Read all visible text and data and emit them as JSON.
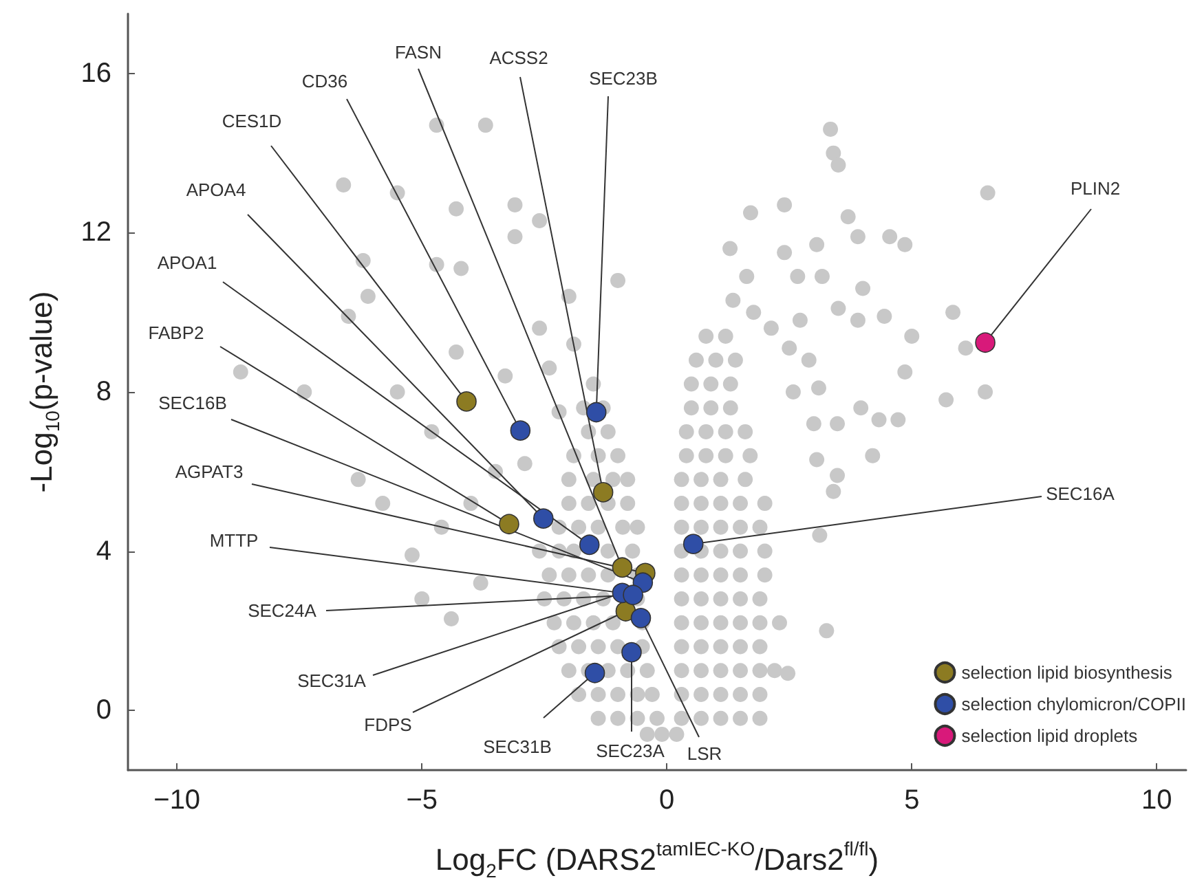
{
  "chart_data": {
    "type": "scatter",
    "xlabel": "Log$_{2}$FC (DARS2$^{tamIEC-KO}$/Dars2$^{fl/fl}$)",
    "ylabel": "-Log$_{10}$(p-value)",
    "xlim": [
      -11,
      10.6
    ],
    "ylim": [
      -1.5,
      17.5
    ],
    "xticks": [
      -10,
      -5,
      0,
      5,
      10
    ],
    "yticks": [
      0,
      4,
      8,
      12,
      16
    ],
    "grid": false,
    "legend": "bottom right",
    "marker": "circle",
    "series": [
      {
        "color": "#c8c8c8",
        "x": [
          -0.4,
          -0.1,
          0.2,
          -1.4,
          -1.0,
          -0.6,
          -0.2,
          0.3,
          0.7,
          1.1,
          1.5,
          1.9,
          -1.8,
          -1.4,
          -1.0,
          -0.6,
          -0.3,
          0.3,
          0.7,
          1.1,
          1.5,
          1.9,
          -2.0,
          -1.6,
          -1.2,
          -0.8,
          -0.4,
          0.3,
          0.7,
          1.1,
          1.5,
          1.9,
          2.2,
          -2.2,
          -1.8,
          -1.4,
          -1.0,
          -0.5,
          0.3,
          0.7,
          1.1,
          1.5,
          1.9,
          -2.3,
          -1.9,
          -1.5,
          -1.1,
          -0.5,
          0.3,
          0.7,
          1.1,
          1.5,
          1.9,
          2.3,
          -2.5,
          -2.1,
          -1.7,
          -1.3,
          -0.6,
          0.3,
          0.7,
          1.1,
          1.5,
          1.9,
          -2.4,
          -2.0,
          -1.6,
          -1.2,
          -0.6,
          0.3,
          0.7,
          1.1,
          1.5,
          2.0,
          -2.6,
          -2.2,
          -1.9,
          -1.2,
          -0.7,
          0.3,
          0.7,
          1.1,
          1.5,
          2.0,
          -2.2,
          -1.8,
          -1.4,
          -0.9,
          -0.6,
          0.3,
          0.7,
          1.1,
          1.5,
          1.9,
          -2.0,
          -1.6,
          -1.2,
          -0.8,
          0.3,
          0.7,
          1.1,
          1.5,
          2.0,
          -2.0,
          -1.5,
          -1.1,
          -0.8,
          0.3,
          0.7,
          1.1,
          1.6,
          -1.9,
          -1.4,
          -1.0,
          0.4,
          0.8,
          1.2,
          1.7,
          -1.6,
          -1.2,
          0.4,
          0.8,
          1.2,
          1.6,
          -1.7,
          -1.3,
          0.5,
          0.9,
          1.3,
          -1.5,
          0.5,
          0.9,
          1.3,
          0.6,
          1.0,
          1.4,
          0.8,
          1.2,
          -2.9,
          -3.5,
          -4.0,
          -4.6,
          -5.2,
          -3.8,
          -4.4,
          -5.0,
          -5.8,
          -6.3,
          -4.8,
          -5.5,
          -4.3,
          -3.3,
          -2.2,
          -1.9,
          -2.4,
          -2.6,
          -2.0,
          -4.7,
          -3.7,
          -6.6,
          -5.5,
          -4.3,
          -3.1,
          -2.6,
          -3.1,
          -1.0,
          -6.2,
          -6.1,
          -6.5,
          -8.7,
          -4.7,
          -4.2,
          -7.4,
          3.34,
          3.4,
          3.5,
          6.55,
          1.71,
          2.4,
          3.7,
          1.29,
          3.06,
          3.9,
          4.55,
          4.86,
          2.4,
          1.63,
          2.67,
          3.17,
          4.0,
          1.35,
          1.77,
          3.5,
          3.9,
          4.44,
          5.0,
          5.84,
          6.1,
          2.72,
          2.13,
          2.5,
          2.9,
          4.86,
          5.7,
          6.5,
          2.58,
          3.1,
          3.96,
          4.33,
          4.72,
          3.48,
          3.0,
          4.2,
          3.06,
          3.48,
          3.4,
          3.12,
          3.26,
          2.47
        ],
        "values": [
          -0.6,
          -0.6,
          -0.6,
          -0.2,
          -0.2,
          -0.2,
          -0.2,
          -0.2,
          -0.2,
          -0.2,
          -0.2,
          -0.2,
          0.4,
          0.4,
          0.4,
          0.4,
          0.4,
          0.4,
          0.4,
          0.4,
          0.4,
          0.4,
          1.0,
          1.0,
          1.0,
          1.0,
          1.0,
          1.0,
          1.0,
          1.0,
          1.0,
          1.0,
          1.0,
          1.6,
          1.6,
          1.6,
          1.6,
          1.6,
          1.6,
          1.6,
          1.6,
          1.6,
          1.6,
          2.2,
          2.2,
          2.2,
          2.2,
          2.2,
          2.2,
          2.2,
          2.2,
          2.2,
          2.2,
          2.2,
          2.8,
          2.8,
          2.8,
          2.8,
          2.8,
          2.8,
          2.8,
          2.8,
          2.8,
          2.8,
          3.4,
          3.4,
          3.4,
          3.4,
          3.4,
          3.4,
          3.4,
          3.4,
          3.4,
          3.4,
          4.0,
          4.0,
          4.0,
          4.0,
          4.0,
          4.0,
          4.0,
          4.0,
          4.0,
          4.0,
          4.6,
          4.6,
          4.6,
          4.6,
          4.6,
          4.6,
          4.6,
          4.6,
          4.6,
          4.6,
          5.2,
          5.2,
          5.2,
          5.2,
          5.2,
          5.2,
          5.2,
          5.2,
          5.2,
          5.8,
          5.8,
          5.8,
          5.8,
          5.8,
          5.8,
          5.8,
          5.8,
          6.4,
          6.4,
          6.4,
          6.4,
          6.4,
          6.4,
          6.4,
          7.0,
          7.0,
          7.0,
          7.0,
          7.0,
          7.0,
          7.6,
          7.6,
          7.6,
          7.6,
          7.6,
          8.2,
          8.2,
          8.2,
          8.2,
          8.8,
          8.8,
          8.8,
          9.4,
          9.4,
          6.2,
          6.0,
          5.2,
          4.6,
          3.9,
          3.2,
          2.3,
          2.8,
          5.2,
          5.8,
          7.0,
          8.0,
          9.0,
          8.4,
          7.5,
          9.2,
          8.6,
          9.6,
          10.4,
          14.7,
          14.7,
          13.2,
          13.0,
          12.6,
          12.7,
          12.3,
          11.9,
          10.8,
          11.3,
          10.4,
          9.9,
          8.5,
          11.2,
          11.1,
          8.0,
          14.6,
          14.0,
          13.7,
          13.0,
          12.5,
          12.7,
          12.4,
          11.6,
          11.7,
          11.9,
          11.9,
          11.7,
          11.5,
          10.9,
          10.9,
          10.9,
          10.6,
          10.3,
          10.0,
          10.1,
          9.8,
          9.9,
          9.4,
          10.0,
          9.1,
          9.8,
          9.6,
          9.1,
          8.8,
          8.5,
          7.8,
          8.0,
          8.0,
          8.1,
          7.6,
          7.3,
          7.3,
          7.2,
          7.2,
          6.4,
          6.3,
          5.9,
          5.5,
          4.4,
          2.0,
          0.93
        ]
      },
      {
        "name": "selection lipid biosynthesis",
        "color": "#8c7b22",
        "x": [
          -4.09,
          -1.3,
          -3.22,
          -0.91,
          -0.44,
          -0.84
        ],
        "values": [
          7.76,
          5.48,
          4.68,
          3.59,
          3.45,
          2.49
        ]
      },
      {
        "name": "selection chylomicron/COPII",
        "color": "#2f4ea6",
        "x": [
          -2.99,
          -1.44,
          -2.52,
          -1.58,
          -0.49,
          -0.91,
          -0.69,
          -0.53,
          -0.72,
          -1.47,
          0.54
        ],
        "values": [
          7.03,
          7.49,
          4.82,
          4.16,
          3.21,
          2.95,
          2.9,
          2.32,
          1.46,
          0.94,
          4.18
        ]
      },
      {
        "name": "selection lipid droplets",
        "color": "#d8197a",
        "x": [
          6.5
        ],
        "values": [
          9.24
        ]
      }
    ],
    "annotations": [
      {
        "text": "FASN",
        "x": -0.91,
        "y": 3.59
      },
      {
        "text": "ACSS2",
        "x": -1.3,
        "y": 5.48
      },
      {
        "text": "SEC23B",
        "x": -1.44,
        "y": 7.49
      },
      {
        "text": "CD36",
        "x": -2.99,
        "y": 7.03
      },
      {
        "text": "CES1D",
        "x": -4.09,
        "y": 7.76
      },
      {
        "text": "APOA4",
        "x": -2.52,
        "y": 4.82
      },
      {
        "text": "APOA1",
        "x": -1.58,
        "y": 4.16
      },
      {
        "text": "FABP2",
        "x": -3.22,
        "y": 4.68
      },
      {
        "text": "SEC16B",
        "x": -0.49,
        "y": 3.21
      },
      {
        "text": "AGPAT3",
        "x": -0.44,
        "y": 3.45
      },
      {
        "text": "MTTP",
        "x": -0.91,
        "y": 2.95
      },
      {
        "text": "SEC24A",
        "x": -0.69,
        "y": 2.9
      },
      {
        "text": "SEC31A",
        "x": -0.91,
        "y": 2.95
      },
      {
        "text": "FDPS",
        "x": -0.84,
        "y": 2.49
      },
      {
        "text": "SEC31B",
        "x": -1.47,
        "y": 0.94
      },
      {
        "text": "SEC23A",
        "x": -0.72,
        "y": 1.46
      },
      {
        "text": "LSR",
        "x": -0.53,
        "y": 2.32
      },
      {
        "text": "SEC16A",
        "x": 0.54,
        "y": 4.18
      },
      {
        "text": "PLIN2",
        "x": 6.5,
        "y": 9.24
      }
    ]
  }
}
